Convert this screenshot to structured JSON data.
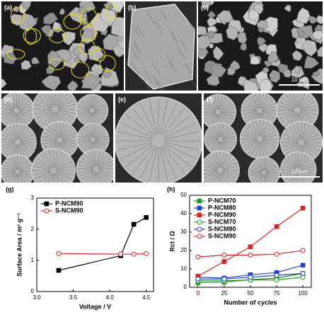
{
  "images": [
    {
      "label": "(a)"
    },
    {
      "label": "(b)"
    },
    {
      "label": "(c)",
      "scale_bar": "10 µm"
    },
    {
      "label": "(d)"
    },
    {
      "label": "(e)"
    },
    {
      "label": "(f)",
      "scale_bar": "10 µm"
    }
  ],
  "chart_data": [
    {
      "type": "line",
      "label": "(g)",
      "xlabel": "Voltage / V",
      "ylabel": "Surface Area / m² g⁻¹",
      "x": [
        3.3,
        4.15,
        4.33,
        4.5
      ],
      "xlim": [
        3.0,
        4.6
      ],
      "xticks": [
        {
          "value": 3,
          "label": "3.0"
        },
        {
          "value": 3.5,
          "label": "3.5"
        },
        {
          "value": 4,
          "label": "4.0"
        },
        {
          "value": 4.5,
          "label": "4.5"
        }
      ],
      "ylim": [
        0,
        3
      ],
      "yticks": [
        0,
        1,
        2,
        3
      ],
      "legend": "top-left",
      "series": [
        {
          "name": "P-NCM90",
          "color": "#000000",
          "marker": "square",
          "filled": true,
          "values": [
            0.68,
            1.15,
            2.16,
            2.38
          ]
        },
        {
          "name": "S-NCM90",
          "color": "#e32020",
          "marker": "circle",
          "filled": false,
          "values": [
            1.22,
            1.2,
            1.2,
            1.22
          ]
        }
      ]
    },
    {
      "type": "line",
      "label": "(h)",
      "xlabel": "Number of cycles",
      "ylabel": "Rct / Ω",
      "x": [
        0,
        25,
        50,
        75,
        100
      ],
      "xlim": [
        -8,
        108
      ],
      "xticks": [
        0,
        25,
        50,
        75,
        100
      ],
      "ylim": [
        0,
        50
      ],
      "yticks": [
        0,
        10,
        20,
        30,
        40,
        50
      ],
      "legend": "top-left",
      "series": [
        {
          "name": "P-NCM70",
          "color": "#1a9a1a",
          "marker": "square",
          "filled": true,
          "values": [
            2.5,
            2.8,
            4.2,
            5.0,
            7.5
          ]
        },
        {
          "name": "P-NCM80",
          "color": "#1f3fe0",
          "marker": "square",
          "filled": true,
          "values": [
            5.5,
            5.0,
            6.8,
            8.0,
            12.0
          ]
        },
        {
          "name": "P-NCM90",
          "color": "#e32020",
          "marker": "square",
          "filled": true,
          "values": [
            6.0,
            14.0,
            22.0,
            33.0,
            43.0
          ]
        },
        {
          "name": "S-NCM70",
          "color": "#1a9a1a",
          "marker": "circle",
          "filled": false,
          "values": [
            3.5,
            3.5,
            4.0,
            4.0,
            5.5
          ]
        },
        {
          "name": "S-NCM80",
          "color": "#1f3fe0",
          "marker": "circle",
          "filled": false,
          "values": [
            4.5,
            4.5,
            5.5,
            6.5,
            7.5
          ]
        },
        {
          "name": "S-NCM90",
          "color": "#e32020",
          "marker": "circle",
          "filled": false,
          "values": [
            16.5,
            17.5,
            17.5,
            18.0,
            20.0
          ]
        }
      ]
    }
  ]
}
